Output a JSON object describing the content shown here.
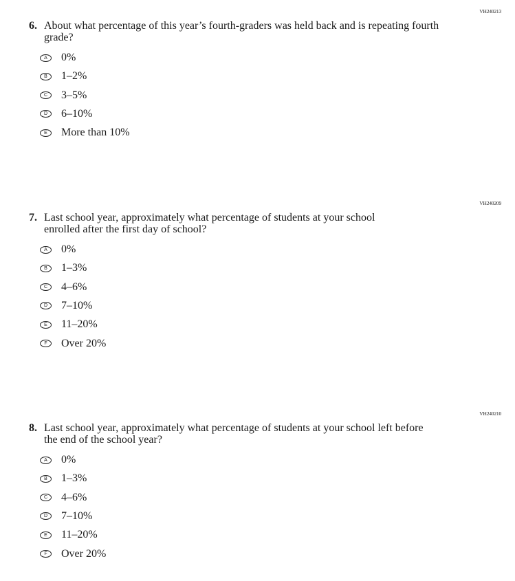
{
  "questions": [
    {
      "id": "VH240213",
      "number": "6.",
      "text": "About what percentage of this year’s fourth-graders was held back and is repeating fourth grade?",
      "options": [
        {
          "letter": "A",
          "label": "0%"
        },
        {
          "letter": "B",
          "label": "1–2%"
        },
        {
          "letter": "C",
          "label": "3–5%"
        },
        {
          "letter": "D",
          "label": "6–10%"
        },
        {
          "letter": "E",
          "label": "More than 10%"
        }
      ]
    },
    {
      "id": "VH240209",
      "number": "7.",
      "text": "Last school year, approximately what percentage of students at your school enrolled after the first day of school?",
      "options": [
        {
          "letter": "A",
          "label": "0%"
        },
        {
          "letter": "B",
          "label": "1–3%"
        },
        {
          "letter": "C",
          "label": "4–6%"
        },
        {
          "letter": "D",
          "label": "7–10%"
        },
        {
          "letter": "E",
          "label": "11–20%"
        },
        {
          "letter": "F",
          "label": "Over 20%"
        }
      ]
    },
    {
      "id": "VH240210",
      "number": "8.",
      "text": "Last school year, approximately what percentage of students at your school left before the end of the school year?",
      "options": [
        {
          "letter": "A",
          "label": "0%"
        },
        {
          "letter": "B",
          "label": "1–3%"
        },
        {
          "letter": "C",
          "label": "4–6%"
        },
        {
          "letter": "D",
          "label": "7–10%"
        },
        {
          "letter": "E",
          "label": "11–20%"
        },
        {
          "letter": "F",
          "label": "Over 20%"
        }
      ]
    }
  ]
}
